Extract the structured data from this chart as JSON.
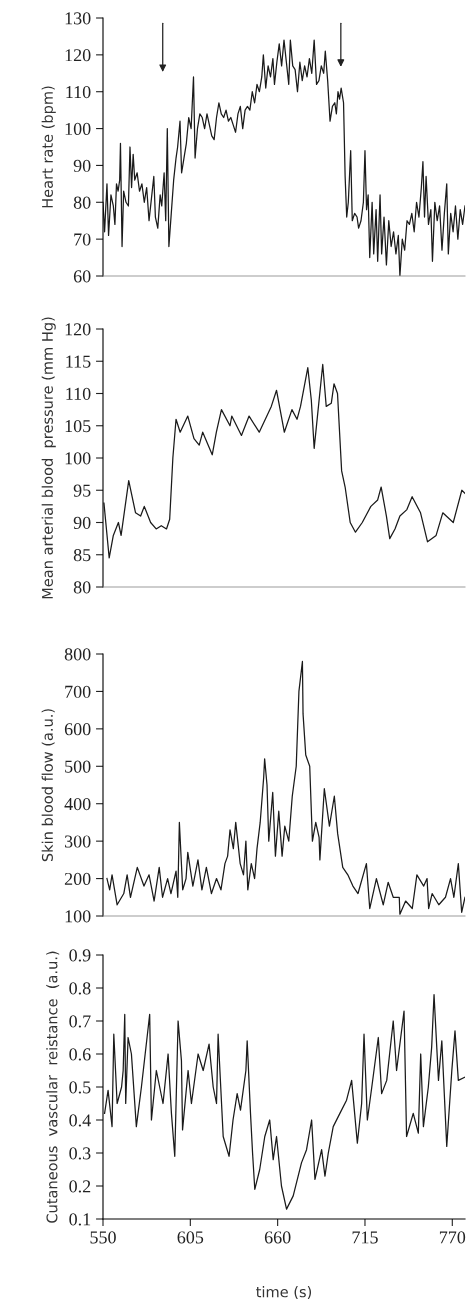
{
  "chart_data": [
    {
      "type": "line",
      "ylabel": "Heart rate (bpm)",
      "xlim": [
        550,
        778
      ],
      "xticks": [
        550,
        605,
        660,
        715,
        770
      ],
      "ylim": [
        60,
        130
      ],
      "yticks": [
        60,
        70,
        80,
        90,
        100,
        110,
        120,
        130
      ],
      "tick_labels": "y",
      "series": [
        {
          "color": "#1a1a1a",
          "x": [
            550,
            551,
            552.5,
            553.5,
            555,
            556.5,
            557.5,
            558.5,
            559.5,
            560.5,
            561,
            562,
            563,
            564.5,
            566,
            567,
            568,
            569,
            570,
            571.5,
            573,
            574.5,
            576,
            577.5,
            579,
            580.5,
            582,
            583,
            584.5,
            586,
            587,
            588.5,
            589.5,
            590.5,
            591.5,
            593,
            594.5,
            596,
            597,
            598.5,
            599.5,
            601,
            602.5,
            604,
            605.5,
            607,
            608,
            609.5,
            611,
            612.5,
            614,
            615.5,
            617,
            618.5,
            620,
            621.5,
            623,
            624.5,
            626,
            627.5,
            629,
            630.5,
            632,
            633.5,
            635,
            636.5,
            638,
            639.5,
            641,
            642.5,
            644,
            645.5,
            647,
            648.5,
            650,
            651,
            652.5,
            654,
            655.5,
            657,
            658,
            659.5,
            661,
            662.5,
            664,
            665.5,
            667,
            668,
            669.5,
            671,
            672.5,
            674,
            675.5,
            677,
            678.5,
            680,
            681.5,
            683,
            684.5,
            686,
            687.5,
            689,
            690,
            691.5,
            693,
            694.5,
            696,
            697,
            698,
            699,
            700,
            701.5,
            702.5,
            703.5,
            704.5,
            706,
            707,
            708.5,
            710,
            711,
            712.5,
            714,
            715,
            716,
            717,
            718,
            719.5,
            720.5,
            722,
            723,
            724.5,
            725.5,
            727,
            728.5,
            730,
            731.5,
            733,
            734.5,
            736,
            737,
            738.5,
            740,
            741.5,
            743,
            744.5,
            746,
            747.5,
            749,
            750.5,
            751.5,
            752.5,
            753.5,
            755,
            756.5,
            757.5,
            759,
            760.5,
            762,
            763.5,
            765,
            766.5,
            767.5,
            769,
            770.5,
            772,
            773.5,
            775,
            776.5,
            778
          ],
          "values": [
            80,
            72,
            85,
            71,
            82,
            79,
            74,
            85,
            83,
            86,
            96,
            68,
            83,
            80,
            79,
            95,
            84,
            93,
            86,
            88,
            83,
            85,
            80,
            84,
            75,
            81,
            87,
            76,
            73,
            82,
            79,
            88,
            75,
            100,
            68,
            77,
            86,
            92,
            95,
            102,
            88,
            92,
            96,
            103,
            100,
            114,
            92,
            100,
            104,
            103,
            100,
            104,
            101,
            98,
            97,
            103,
            107,
            104,
            103,
            105,
            102,
            103,
            101,
            99,
            104,
            106,
            100,
            105,
            106,
            105,
            110,
            107,
            112,
            110,
            114,
            120,
            111,
            117,
            114,
            119,
            112,
            118,
            123,
            117,
            124,
            118,
            112,
            124,
            117,
            116,
            110,
            118,
            113,
            117,
            114,
            119,
            115,
            124,
            112,
            113,
            117,
            115,
            121,
            113,
            102,
            106,
            107,
            104,
            110,
            108,
            111,
            107,
            87,
            76,
            80,
            94,
            75,
            77,
            76,
            73,
            75,
            80,
            94,
            78,
            82,
            65,
            80,
            66,
            78,
            64,
            82,
            66,
            76,
            63,
            75,
            68,
            72,
            66,
            71,
            60,
            70,
            67,
            75,
            74,
            77,
            72,
            80,
            76,
            84,
            91,
            76,
            87,
            74,
            78,
            64,
            80,
            75,
            79,
            67,
            77,
            85,
            66,
            77,
            72,
            79,
            70,
            78,
            74,
            79
          ]
        }
      ]
    },
    {
      "type": "line",
      "ylabel": "Mean arterial blood  pressure (mm Hg)",
      "xlim": [
        550,
        778
      ],
      "xticks": [
        550,
        605,
        660,
        715,
        770
      ],
      "ylim": [
        80,
        120
      ],
      "yticks": [
        80,
        85,
        90,
        95,
        100,
        105,
        110,
        115,
        120
      ],
      "tick_labels": "y",
      "series": [
        {
          "color": "#1a1a1a",
          "x": [
            550.6,
            553.9,
            556.5,
            559.7,
            561.4,
            566.2,
            570.5,
            573.7,
            576,
            580,
            583.5,
            586.7,
            590,
            592,
            594,
            596,
            598.6,
            603.4,
            607.3,
            610.6,
            612.8,
            618.8,
            621.4,
            624.6,
            630,
            631.1,
            637.2,
            642,
            648.4,
            656,
            659.3,
            664.2,
            669,
            672.2,
            674.4,
            679,
            681.2,
            683,
            688.4,
            690.6,
            693.8,
            695.5,
            697.7,
            700.3,
            702.5,
            705.7,
            709,
            713.3,
            718.7,
            723,
            725.2,
            728.5,
            730.6,
            733.9,
            737,
            741.4,
            744.7,
            750,
            754.4,
            759.8,
            764,
            770.6,
            776,
            778
          ],
          "values": [
            93,
            84.5,
            88,
            90,
            88,
            96.5,
            91.5,
            91,
            92.5,
            90,
            89,
            89.5,
            89,
            90.5,
            100,
            106,
            104,
            106.5,
            103,
            102,
            104,
            100.5,
            104,
            107.5,
            105,
            106.5,
            103.5,
            106.5,
            104,
            108,
            110.5,
            104,
            107.5,
            106,
            108,
            114,
            109,
            101.5,
            114.5,
            108,
            108.5,
            111.5,
            110,
            98,
            95.5,
            90,
            88.5,
            90,
            92.5,
            93.5,
            95.5,
            91,
            87.5,
            89,
            91,
            92,
            94,
            91.5,
            87,
            88,
            91.5,
            90,
            95,
            94.5
          ]
        }
      ]
    },
    {
      "type": "line",
      "ylabel": "Skin blood flow (a.u.)",
      "xlim": [
        550,
        778
      ],
      "xticks": [
        550,
        605,
        660,
        715,
        770
      ],
      "ylim": [
        100,
        800
      ],
      "yticks": [
        100,
        200,
        300,
        400,
        500,
        600,
        700,
        800
      ],
      "tick_labels": "y",
      "series": [
        {
          "color": "#1a1a1a",
          "x": [
            552.5,
            554.2,
            555.7,
            558.9,
            563.1,
            565.2,
            567.3,
            571.6,
            575.8,
            579,
            582.2,
            585.4,
            587.5,
            590.7,
            592.8,
            596,
            597.1,
            598.1,
            600.2,
            602.3,
            603.4,
            606.6,
            609.8,
            612.3,
            615.1,
            618.3,
            621.5,
            624.3,
            626.8,
            628.5,
            630,
            632.1,
            633.6,
            636.4,
            638.5,
            640,
            641.2,
            643.4,
            645.5,
            647,
            649,
            651.2,
            651.8,
            653.3,
            654.4,
            656.9,
            658.6,
            660.7,
            662.8,
            664.5,
            667,
            669.2,
            671.7,
            673.4,
            675.6,
            676,
            677.7,
            680.2,
            681.9,
            684,
            686.1,
            686.6,
            689.4,
            692.6,
            695.7,
            697.8,
            701,
            704.2,
            707.4,
            710.6,
            715.9,
            718,
            722.2,
            726.5,
            729.6,
            732.8,
            736.6,
            737,
            740.6,
            744.8,
            747.7,
            752,
            754.1,
            755.1,
            757.3,
            761.5,
            765.7,
            768.9,
            771,
            773.8,
            775.9,
            778
          ],
          "values": [
            200,
            170,
            210,
            130,
            160,
            210,
            150,
            230,
            180,
            210,
            140,
            230,
            150,
            200,
            160,
            220,
            150,
            350,
            170,
            200,
            270,
            180,
            250,
            170,
            230,
            160,
            200,
            170,
            240,
            260,
            330,
            280,
            350,
            240,
            210,
            300,
            170,
            240,
            200,
            280,
            350,
            470,
            520,
            450,
            300,
            430,
            260,
            380,
            260,
            340,
            300,
            420,
            500,
            700,
            780,
            640,
            530,
            500,
            300,
            350,
            310,
            250,
            440,
            340,
            420,
            320,
            230,
            210,
            180,
            160,
            240,
            120,
            200,
            130,
            190,
            150,
            150,
            105,
            140,
            120,
            210,
            180,
            200,
            120,
            160,
            130,
            150,
            200,
            150,
            240,
            110,
            150
          ]
        }
      ]
    },
    {
      "type": "line",
      "ylabel": "Cutaneous  vascular  reistance  (a.u.)",
      "xlabel": "time (s)",
      "xlim": [
        550,
        778
      ],
      "xticks": [
        550,
        605,
        660,
        715,
        770
      ],
      "ylim": [
        0.1,
        0.9
      ],
      "yticks": [
        0.1,
        0.2,
        0.3,
        0.4,
        0.5,
        0.6,
        0.7,
        0.8,
        0.9
      ],
      "series": [
        {
          "color": "#1a1a1a",
          "x": [
            551,
            553.2,
            555.7,
            556.8,
            558.9,
            561.7,
            562.7,
            563.7,
            564.3,
            565.8,
            567.9,
            571,
            574.2,
            579.4,
            580.5,
            583.6,
            587.8,
            591,
            593.1,
            595.2,
            597.3,
            599.4,
            600.1,
            603.6,
            605.7,
            609.9,
            613.1,
            616.8,
            619.4,
            621.5,
            622.5,
            625.7,
            629.4,
            631.9,
            634.5,
            636.6,
            640,
            640.8,
            642.9,
            644.2,
            645.6,
            648.7,
            651.9,
            655,
            657.2,
            659.3,
            662.4,
            665.6,
            669.8,
            675,
            678.2,
            681.4,
            683.5,
            687.7,
            689.8,
            691.9,
            695,
            699.2,
            703.4,
            706.6,
            710.2,
            712.9,
            714.4,
            716.5,
            719.3,
            723.4,
            725.5,
            728.7,
            732.8,
            734.9,
            739.6,
            741.2,
            745.4,
            748.6,
            750.1,
            751.8,
            754.9,
            757,
            758.5,
            761.3,
            763.4,
            766.5,
            769.7,
            771.7,
            773.8,
            778
          ],
          "values": [
            0.42,
            0.49,
            0.38,
            0.66,
            0.45,
            0.5,
            0.55,
            0.72,
            0.45,
            0.65,
            0.6,
            0.38,
            0.5,
            0.72,
            0.4,
            0.55,
            0.45,
            0.6,
            0.42,
            0.29,
            0.7,
            0.58,
            0.37,
            0.55,
            0.45,
            0.6,
            0.55,
            0.63,
            0.5,
            0.45,
            0.66,
            0.35,
            0.29,
            0.4,
            0.48,
            0.43,
            0.55,
            0.64,
            0.42,
            0.3,
            0.19,
            0.25,
            0.35,
            0.4,
            0.28,
            0.35,
            0.2,
            0.13,
            0.17,
            0.27,
            0.31,
            0.4,
            0.22,
            0.31,
            0.23,
            0.3,
            0.38,
            0.42,
            0.46,
            0.52,
            0.33,
            0.45,
            0.66,
            0.4,
            0.5,
            0.65,
            0.48,
            0.52,
            0.7,
            0.55,
            0.73,
            0.35,
            0.42,
            0.36,
            0.6,
            0.38,
            0.5,
            0.62,
            0.78,
            0.52,
            0.64,
            0.32,
            0.55,
            0.67,
            0.52,
            0.53
          ]
        }
      ]
    }
  ]
}
